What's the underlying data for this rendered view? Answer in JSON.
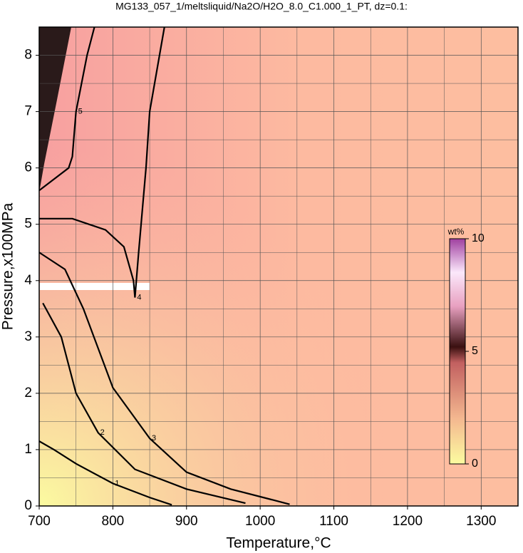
{
  "chart_data": {
    "type": "contour",
    "title": "MG133_057_1/meltsliquid/Na2O/H2O_8.0_C1.000_1_PT, dz=0.1:",
    "x_label": "Temperature,°C",
    "y_label": "Pressure,x100MPa",
    "xlim": [
      700,
      1350
    ],
    "ylim": [
      0,
      8.5
    ],
    "xticks": [
      700,
      800,
      900,
      1000,
      1100,
      1200,
      1300
    ],
    "yticks": [
      0,
      1,
      2,
      3,
      4,
      5,
      6,
      7,
      8
    ],
    "xgrid": [
      750,
      850,
      950,
      1050,
      1150,
      1250
    ],
    "ygrid": [
      0.5,
      1.5,
      2.5,
      3.5,
      4.5,
      5.5,
      6.5,
      7.5
    ],
    "grid": true,
    "contours": [
      {
        "level": 1,
        "x": [
          700,
          720,
          750,
          800,
          850,
          880
        ],
        "y": [
          1.15,
          1.0,
          0.75,
          0.4,
          0.15,
          0.02
        ]
      },
      {
        "level": 2,
        "x": [
          705,
          730,
          750,
          780,
          830,
          900,
          980
        ],
        "y": [
          3.6,
          3.0,
          2.0,
          1.3,
          0.65,
          0.3,
          0.05
        ]
      },
      {
        "level": 3,
        "x": [
          700,
          735,
          760,
          800,
          850,
          900,
          960,
          1040
        ],
        "y": [
          4.5,
          4.2,
          3.5,
          2.1,
          1.2,
          0.6,
          0.3,
          0.03
        ]
      },
      {
        "level": 4,
        "x": [
          700,
          745,
          790,
          815,
          828,
          830,
          835,
          845,
          850,
          870
        ],
        "y": [
          5.1,
          5.1,
          4.9,
          4.6,
          4.0,
          3.7,
          4.5,
          6.0,
          7.0,
          8.5
        ]
      },
      {
        "level": 5,
        "x": [
          700,
          740,
          745,
          750,
          765,
          775
        ],
        "y": [
          5.6,
          6.0,
          6.2,
          7.0,
          8.0,
          8.5
        ]
      }
    ],
    "colorbar": {
      "label": "wt%",
      "lim": [
        0,
        10
      ],
      "ticks": [
        0,
        5,
        10
      ]
    }
  }
}
